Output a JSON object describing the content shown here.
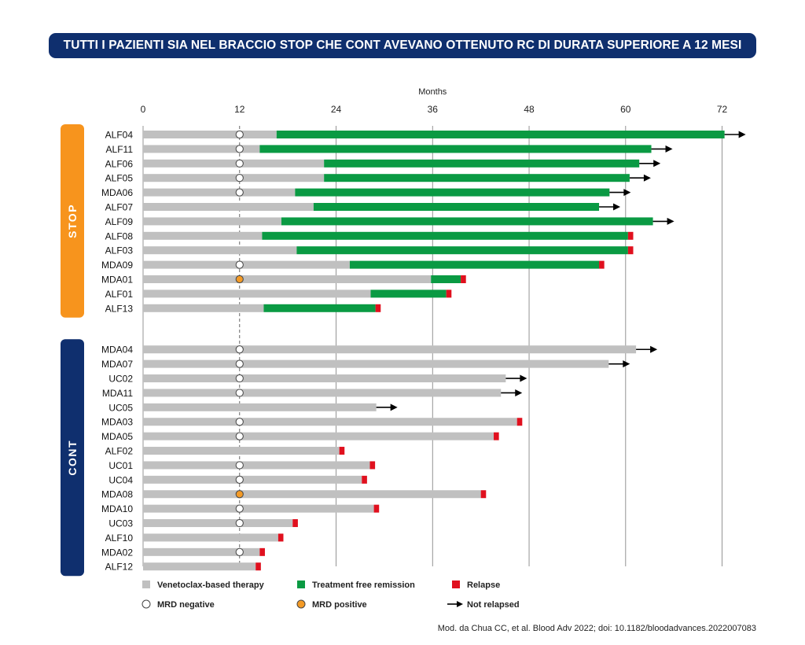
{
  "title": "TUTTI I PAZIENTI SIA NEL BRACCIO STOP CHE CONT AVEVANO OTTENUTO RC DI DURATA SUPERIORE A 12 MESI",
  "citation": "Mod. da Chua CC, et al. Blood Adv 2022; doi: 10.1182/bloodadvances.2022007083",
  "colors": {
    "therapy": "#c0c0c0",
    "tfr": "#0a9a43",
    "relapse": "#e0101e",
    "mrd_positive": "#f39a26",
    "stop_group": "#f7941d",
    "cont_group": "#0f2f6e",
    "grid": "#888888"
  },
  "chart_data": {
    "type": "swimmer",
    "xlabel": "Months",
    "xlim": [
      0,
      76
    ],
    "xticks": [
      0,
      12,
      24,
      36,
      48,
      60,
      72
    ],
    "reference_line": 12,
    "legend": [
      {
        "key": "therapy",
        "label": "Venetoclax-based therapy",
        "icon": "square-gray"
      },
      {
        "key": "tfr",
        "label": "Treatment free remission",
        "icon": "square-green"
      },
      {
        "key": "relapse",
        "label": "Relapse",
        "icon": "square-red"
      },
      {
        "key": "mrd_neg",
        "label": "MRD negative",
        "icon": "circle-white"
      },
      {
        "key": "mrd_pos",
        "label": "MRD positive",
        "icon": "circle-orange"
      },
      {
        "key": "not_relapsed",
        "label": "Not relapsed",
        "icon": "arrow-right"
      }
    ],
    "groups": [
      {
        "name": "STOP",
        "patients": [
          {
            "id": "ALF04",
            "therapy_end": 16.6,
            "end": 72.3,
            "relapse": false,
            "mrd": "negative"
          },
          {
            "id": "ALF11",
            "therapy_end": 14.5,
            "end": 63.2,
            "relapse": false,
            "mrd": "negative"
          },
          {
            "id": "ALF06",
            "therapy_end": 22.5,
            "end": 61.7,
            "relapse": false,
            "mrd": "negative"
          },
          {
            "id": "ALF05",
            "therapy_end": 22.5,
            "end": 60.5,
            "relapse": false,
            "mrd": "negative"
          },
          {
            "id": "MDA06",
            "therapy_end": 18.9,
            "end": 58.0,
            "relapse": false,
            "mrd": "negative"
          },
          {
            "id": "ALF07",
            "therapy_end": 21.2,
            "end": 56.7,
            "relapse": false,
            "mrd": null
          },
          {
            "id": "ALF09",
            "therapy_end": 17.2,
            "end": 63.4,
            "relapse": false,
            "mrd": null
          },
          {
            "id": "ALF08",
            "therapy_end": 14.8,
            "end": 60.8,
            "relapse": true,
            "mrd": null
          },
          {
            "id": "ALF03",
            "therapy_end": 19.1,
            "end": 60.8,
            "relapse": true,
            "mrd": null
          },
          {
            "id": "MDA09",
            "therapy_end": 25.7,
            "end": 57.2,
            "relapse": true,
            "mrd": "negative"
          },
          {
            "id": "MDA01",
            "therapy_end": 35.8,
            "end": 40.0,
            "relapse": true,
            "mrd": "positive"
          },
          {
            "id": "ALF01",
            "therapy_end": 28.3,
            "end": 38.2,
            "relapse": true,
            "mrd": null
          },
          {
            "id": "ALF13",
            "therapy_end": 15.0,
            "end": 29.4,
            "relapse": true,
            "mrd": null
          }
        ]
      },
      {
        "name": "CONT",
        "patients": [
          {
            "id": "MDA04",
            "therapy_end": 61.3,
            "end": 61.3,
            "relapse": false,
            "mrd": "negative"
          },
          {
            "id": "MDA07",
            "therapy_end": 57.9,
            "end": 57.9,
            "relapse": false,
            "mrd": "negative"
          },
          {
            "id": "UC02",
            "therapy_end": 45.1,
            "end": 45.1,
            "relapse": false,
            "mrd": "negative"
          },
          {
            "id": "MDA11",
            "therapy_end": 44.5,
            "end": 44.5,
            "relapse": false,
            "mrd": "negative"
          },
          {
            "id": "UC05",
            "therapy_end": 29.0,
            "end": 29.0,
            "relapse": false,
            "mrd": null
          },
          {
            "id": "MDA03",
            "therapy_end": 46.5,
            "end": 47.0,
            "relapse": true,
            "mrd": "negative"
          },
          {
            "id": "MDA05",
            "therapy_end": 43.6,
            "end": 44.1,
            "relapse": true,
            "mrd": "negative"
          },
          {
            "id": "ALF02",
            "therapy_end": 24.4,
            "end": 24.9,
            "relapse": true,
            "mrd": null
          },
          {
            "id": "UC01",
            "therapy_end": 28.2,
            "end": 28.7,
            "relapse": true,
            "mrd": "negative"
          },
          {
            "id": "UC04",
            "therapy_end": 27.2,
            "end": 27.7,
            "relapse": true,
            "mrd": "negative"
          },
          {
            "id": "MDA08",
            "therapy_end": 42.0,
            "end": 42.5,
            "relapse": true,
            "mrd": "positive"
          },
          {
            "id": "MDA10",
            "therapy_end": 28.7,
            "end": 29.2,
            "relapse": true,
            "mrd": "negative"
          },
          {
            "id": "UC03",
            "therapy_end": 18.6,
            "end": 19.1,
            "relapse": true,
            "mrd": "negative"
          },
          {
            "id": "ALF10",
            "therapy_end": 16.8,
            "end": 17.3,
            "relapse": true,
            "mrd": null
          },
          {
            "id": "MDA02",
            "therapy_end": 14.5,
            "end": 15.0,
            "relapse": true,
            "mrd": "negative"
          },
          {
            "id": "ALF12",
            "therapy_end": 14.0,
            "end": 14.5,
            "relapse": true,
            "mrd": null
          }
        ]
      }
    ]
  }
}
